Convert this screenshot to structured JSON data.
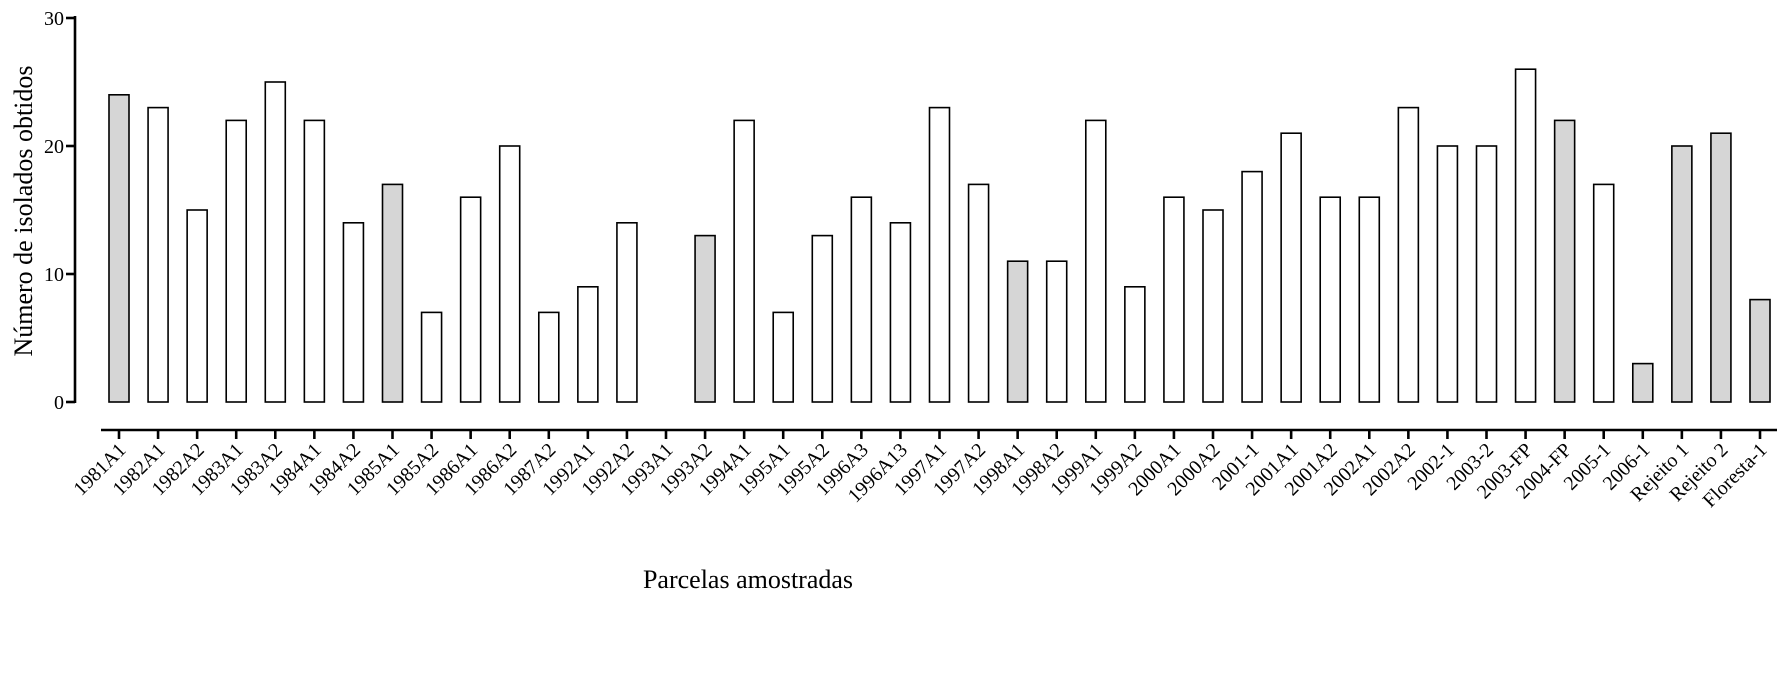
{
  "chart_data": {
    "type": "bar",
    "title": "",
    "xlabel": "Parcelas amostradas",
    "ylabel": "Número de isolados obtidos",
    "ylim": [
      0,
      30
    ],
    "yticks": [
      0,
      10,
      20,
      30
    ],
    "categories": [
      "1981A1",
      "1982A1",
      "1982A2",
      "1983A1",
      "1983A2",
      "1984A1",
      "1984A2",
      "1985A1",
      "1985A2",
      "1986A1",
      "1986A2",
      "1987A2",
      "1992A1",
      "1992A2",
      "1993A1",
      "1993A2",
      "1994A1",
      "1995A1",
      "1995A2",
      "1996A3",
      "1996A13",
      "1997A1",
      "1997A2",
      "1998A1",
      "1998A2",
      "1999A1",
      "1999A2",
      "2000A1",
      "2000A2",
      "2001-1",
      "2001A1",
      "2001A2",
      "2002A1",
      "2002A2",
      "2002-1",
      "2003-2",
      "2003-FP",
      "2004-FP",
      "2005-1",
      "2006-1",
      "Rejeito 1",
      "Rejeito 2",
      "Floresta-1"
    ],
    "values": [
      24,
      23,
      15,
      22,
      25,
      22,
      14,
      17,
      7,
      16,
      20,
      7,
      9,
      14,
      0,
      13,
      22,
      7,
      13,
      16,
      14,
      23,
      17,
      11,
      11,
      22,
      9,
      16,
      15,
      18,
      21,
      16,
      16,
      23,
      20,
      20,
      26,
      22,
      17,
      3,
      20,
      21,
      8
    ],
    "highlighted": [
      true,
      false,
      false,
      false,
      false,
      false,
      false,
      true,
      false,
      false,
      false,
      false,
      false,
      false,
      false,
      true,
      false,
      false,
      false,
      false,
      false,
      false,
      false,
      true,
      false,
      false,
      false,
      false,
      false,
      false,
      false,
      false,
      false,
      false,
      false,
      false,
      false,
      true,
      false,
      true,
      true,
      true,
      true
    ],
    "colors": {
      "highlight_fill": "#d6d6d6",
      "normal_fill": "#ffffff",
      "stroke": "#000000"
    },
    "grid": false,
    "legend": "none"
  }
}
